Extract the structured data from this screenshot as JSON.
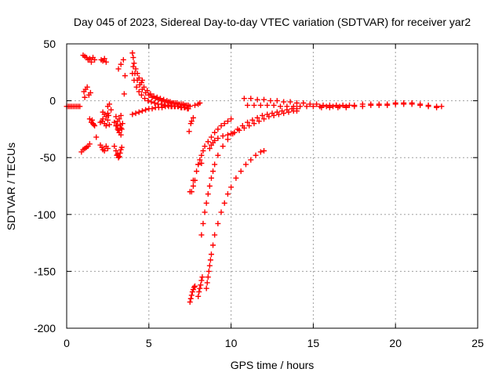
{
  "chart_data": {
    "type": "scatter",
    "title": "Day 045 of 2023, Sidereal Day-to-day VTEC variation (SDTVAR) for receiver yar2",
    "xlabel": "GPS time / hours",
    "ylabel": "SDTVAR / TECUs",
    "xlim": [
      0,
      25
    ],
    "ylim": [
      -200,
      50
    ],
    "xticks": [
      0,
      5,
      10,
      15,
      20,
      25
    ],
    "yticks": [
      -200,
      -150,
      -100,
      -50,
      0,
      50
    ],
    "xtick_labels": [
      "0",
      "5",
      "10",
      "15",
      "20",
      "25"
    ],
    "ytick_labels": [
      "-200",
      "-150",
      "-100",
      "-50",
      "0",
      "50"
    ],
    "grid": true,
    "legend": "none",
    "marker": "plus",
    "color": "#ff0000",
    "series": [
      {
        "name": "SDTVAR",
        "x": [
          0.0,
          0.1,
          0.2,
          0.3,
          0.4,
          0.5,
          0.6,
          0.7,
          0.8,
          0.9,
          1.0,
          1.1,
          1.2,
          1.3,
          1.4,
          1.0,
          1.1,
          1.2,
          1.3,
          1.4,
          1.5,
          1.6,
          1.7,
          1.4,
          1.5,
          1.6,
          1.7,
          1.55,
          1.65,
          1.05,
          1.15,
          1.25,
          1.35,
          1.45,
          1.1,
          1.8,
          2.05,
          2.15,
          2.3,
          2.4,
          2.5,
          2.2,
          2.05,
          2.15,
          2.2,
          2.3,
          2.4,
          2.5,
          2.6,
          2.1,
          2.2,
          2.3,
          2.4,
          2.2,
          2.3,
          2.4,
          2.5,
          2.55,
          2.5,
          2.6,
          2.7,
          2.9,
          3.0,
          3.05,
          3.1,
          3.15,
          3.2,
          3.25,
          3.3,
          3.35,
          2.9,
          3.0,
          3.1,
          3.2,
          3.3,
          3.4,
          3.0,
          3.1,
          3.2,
          3.3,
          3.05,
          3.15,
          3.25,
          3.35,
          3.15,
          3.3,
          3.45,
          3.55,
          4.0,
          4.05,
          4.1,
          4.2,
          4.3,
          4.4,
          4.55,
          4.7,
          4.9,
          5.1,
          5.3,
          5.5,
          5.7,
          5.9,
          6.1,
          6.3,
          6.5,
          6.7,
          6.9,
          7.1,
          7.3,
          7.5,
          4.05,
          4.15,
          4.3,
          4.45,
          4.6,
          4.8,
          5.0,
          5.2,
          5.4,
          5.6,
          5.8,
          6.0,
          6.2,
          6.4,
          6.6,
          6.8,
          7.0,
          7.2,
          7.4,
          4.0,
          4.1,
          4.25,
          4.4,
          4.55,
          4.75,
          4.95,
          5.15,
          5.35,
          5.55,
          5.75,
          5.95,
          6.15,
          6.35,
          6.55,
          6.75,
          6.95,
          7.15,
          7.35,
          4.0,
          4.2,
          4.4,
          4.6,
          4.8,
          5.0,
          5.2,
          5.4,
          5.6,
          5.8,
          6.0,
          6.2,
          6.4,
          6.6,
          6.8,
          7.0,
          7.2,
          7.4,
          3.5,
          3.3,
          4.6,
          7.45,
          7.55,
          7.6,
          7.7,
          7.8,
          8.0,
          8.1,
          7.6,
          7.7,
          7.8,
          7.9,
          8.0,
          8.1,
          8.2,
          8.3,
          8.4,
          8.6,
          8.8,
          9.0,
          9.2,
          9.4,
          9.6,
          9.8,
          10.0,
          7.5,
          7.55,
          7.6,
          7.65,
          7.7,
          7.75,
          7.8,
          8.2,
          8.3,
          8.4,
          8.5,
          8.6,
          8.7,
          8.8,
          8.9,
          9.0,
          9.2,
          9.5,
          9.8,
          10.1,
          10.4,
          10.7,
          11.0,
          11.3,
          11.6,
          11.9,
          12.2,
          12.5,
          12.8,
          13.1,
          13.4,
          13.7,
          14.0,
          8.0,
          8.05,
          8.1,
          8.15,
          8.2,
          8.25,
          8.5,
          8.55,
          8.6,
          8.65,
          8.7,
          8.75,
          8.8,
          8.9,
          9.0,
          9.2,
          9.4,
          9.6,
          9.8,
          10.0,
          10.3,
          10.6,
          10.9,
          11.2,
          11.5,
          11.8,
          12.0,
          8.7,
          8.8,
          8.9,
          9.0,
          9.2,
          9.5,
          9.8,
          10.0,
          10.2,
          10.5,
          10.8,
          11.1,
          11.4,
          11.7,
          12.0,
          12.3,
          12.6,
          12.9,
          13.2,
          13.5,
          13.8,
          14.0,
          10.8,
          11.2,
          11.6,
          12.0,
          12.4,
          12.8,
          13.2,
          13.6,
          14.0,
          14.4,
          14.8,
          15.2,
          15.6,
          16.0,
          16.4,
          16.8,
          17.2,
          11.0,
          11.4,
          11.8,
          12.2,
          12.6,
          13.0,
          13.4,
          13.8,
          14.2,
          14.6,
          15.0,
          15.4,
          15.8,
          16.2,
          16.6,
          17.0,
          17.5,
          18.0,
          18.5,
          19.0,
          19.5,
          20.0,
          20.5,
          21.0,
          21.5,
          22.0,
          22.5,
          22.8,
          15.5,
          16.0,
          16.5,
          17.0,
          17.5,
          18.0,
          18.5,
          19.0,
          19.5,
          20.0,
          20.5,
          21.0,
          21.5,
          22.0,
          22.5,
          7.5,
          7.7,
          8.0,
          8.2
        ],
        "y": [
          -5,
          -5,
          -5,
          -5,
          -5,
          -5,
          -5,
          -5,
          -5,
          -45,
          -43,
          -42,
          -41,
          -40,
          -38,
          40,
          39,
          38,
          36,
          37,
          34,
          38,
          36,
          -16,
          -19,
          -20,
          -22,
          -17,
          -21,
          8,
          10,
          12,
          5,
          7,
          3,
          -32,
          -39,
          -41,
          -44,
          -40,
          -42,
          -43,
          -19,
          -18,
          -16,
          -20,
          -22,
          -17,
          -21,
          36,
          35,
          37,
          34,
          -10,
          -12,
          -14,
          -11,
          -13,
          -5,
          -3,
          -8,
          -40,
          -44,
          -48,
          -47,
          -50,
          -49,
          -46,
          -43,
          -41,
          -19,
          -22,
          -25,
          -28,
          -24,
          -20,
          -14,
          -18,
          -16,
          -13,
          -22,
          -26,
          -21,
          -25,
          28,
          32,
          36,
          22,
          42,
          38,
          33,
          28,
          24,
          20,
          16,
          12,
          9,
          6,
          4,
          3,
          2,
          1,
          0,
          -1,
          -2,
          -2,
          -3,
          -3,
          -4,
          -5,
          30,
          24,
          18,
          14,
          10,
          7,
          5,
          3,
          2,
          1,
          0,
          -1,
          -1,
          -2,
          -2,
          -3,
          -3,
          -4,
          -4,
          24,
          18,
          12,
          8,
          5,
          2,
          0,
          -1,
          -2,
          -3,
          -3,
          -4,
          -4,
          -5,
          -5,
          -5,
          -6,
          -6,
          -7,
          -12,
          -11,
          -10,
          -9,
          -8,
          -7,
          -7,
          -6,
          -6,
          -6,
          -5,
          -5,
          -5,
          -5,
          -5,
          -6,
          -6,
          -7,
          6,
          -30,
          18,
          -27,
          -20,
          -18,
          -15,
          -4,
          -3,
          -2,
          -80,
          -75,
          -70,
          -62,
          -56,
          -52,
          -48,
          -44,
          -40,
          -36,
          -32,
          -28,
          -25,
          -22,
          -20,
          -18,
          -16,
          -177,
          -174,
          -171,
          -168,
          -166,
          -164,
          -163,
          -118,
          -108,
          -98,
          -90,
          -82,
          -75,
          -68,
          -62,
          -56,
          -48,
          -40,
          -34,
          -29,
          -25,
          -22,
          -19,
          -17,
          -15,
          -13,
          -12,
          -11,
          -10,
          -9,
          -8,
          -7,
          -7,
          -172,
          -168,
          -165,
          -162,
          -158,
          -155,
          -165,
          -160,
          -155,
          -150,
          -145,
          -140,
          -135,
          -127,
          -118,
          -108,
          -98,
          -90,
          -82,
          -76,
          -68,
          -62,
          -56,
          -52,
          -48,
          -45,
          -44,
          -42,
          -39,
          -37,
          -35,
          -33,
          -31,
          -30,
          -29,
          -28,
          -26,
          -24,
          -22,
          -20,
          -18,
          -16,
          -14,
          -13,
          -12,
          -11,
          -10,
          -9,
          -9,
          2,
          2,
          1,
          1,
          0,
          0,
          -1,
          -1,
          -2,
          -2,
          -3,
          -3,
          -4,
          -4,
          -4,
          -4,
          -4,
          -4,
          -4,
          -4,
          -4,
          -4,
          -5,
          -5,
          -5,
          -5,
          -5,
          -5,
          -5,
          -5,
          -5,
          -5,
          -5,
          -4,
          -3,
          -3,
          -3,
          -3,
          -2,
          -2,
          -2,
          -3,
          -4,
          -5,
          -5,
          -6,
          -6,
          -6,
          -6,
          -5,
          -5,
          -4,
          -4,
          -4,
          -3,
          -3,
          -3,
          -4,
          -5,
          -6,
          -80,
          -70,
          -56,
          -55
        ]
      }
    ]
  }
}
